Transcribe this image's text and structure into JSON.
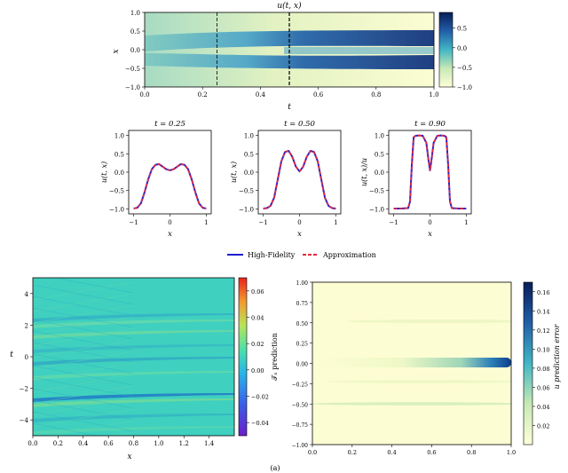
{
  "chart_data": [
    {
      "type": "heatmap",
      "title": "u(t, x)",
      "xlabel": "t",
      "ylabel": "x",
      "xlim": [
        0.0,
        1.0
      ],
      "ylim": [
        -1.0,
        1.0
      ],
      "xticks": [
        "0.0",
        "0.2",
        "0.4",
        "0.6",
        "0.8",
        "1.0"
      ],
      "yticks": [
        "−1.0",
        "−0.5",
        "0.0",
        "0.5",
        "1.0"
      ],
      "vlines_t": [
        0.25,
        0.5
      ],
      "colorbar_ticks": [
        "−1.0",
        "−0.5",
        "0.0",
        "0.5"
      ],
      "colorbar_range": [
        -1.0,
        0.9
      ]
    },
    {
      "type": "line",
      "title": "t = 0.25",
      "xlabel": "x",
      "ylabel": "u(t, x)",
      "xlim": [
        -1,
        1
      ],
      "ylim": [
        -1.0,
        1.0
      ],
      "xticks": [
        "−1",
        "0",
        "1"
      ],
      "yticks": [
        "−1.0",
        "−0.5",
        "0.0",
        "0.5",
        "1.0"
      ],
      "x": [
        -1.0,
        -0.9,
        -0.8,
        -0.7,
        -0.6,
        -0.5,
        -0.4,
        -0.3,
        -0.2,
        -0.1,
        0.0,
        0.1,
        0.2,
        0.3,
        0.4,
        0.5,
        0.6,
        0.7,
        0.8,
        0.9,
        1.0
      ],
      "series": [
        {
          "name": "High-Fidelity",
          "values": [
            -0.99,
            -0.97,
            -0.85,
            -0.55,
            -0.2,
            0.08,
            0.2,
            0.22,
            0.15,
            0.08,
            0.05,
            0.08,
            0.15,
            0.22,
            0.2,
            0.08,
            -0.2,
            -0.55,
            -0.85,
            -0.97,
            -0.99
          ]
        },
        {
          "name": "Approximation",
          "values": [
            -0.99,
            -0.97,
            -0.85,
            -0.55,
            -0.2,
            0.08,
            0.2,
            0.22,
            0.15,
            0.08,
            0.05,
            0.08,
            0.15,
            0.22,
            0.2,
            0.08,
            -0.2,
            -0.55,
            -0.85,
            -0.97,
            -0.99
          ]
        }
      ]
    },
    {
      "type": "line",
      "title": "t = 0.50",
      "xlabel": "x",
      "ylabel": "u(t, x)",
      "xlim": [
        -1,
        1
      ],
      "ylim": [
        -1.0,
        1.0
      ],
      "xticks": [
        "−1",
        "0",
        "1"
      ],
      "yticks": [
        "−1.0",
        "−0.5",
        "0.0",
        "0.5",
        "1.0"
      ],
      "x": [
        -1.0,
        -0.9,
        -0.8,
        -0.7,
        -0.6,
        -0.5,
        -0.4,
        -0.3,
        -0.2,
        -0.1,
        0.0,
        0.1,
        0.2,
        0.3,
        0.4,
        0.5,
        0.6,
        0.7,
        0.8,
        0.9,
        1.0
      ],
      "series": [
        {
          "name": "High-Fidelity",
          "values": [
            -0.99,
            -0.98,
            -0.92,
            -0.7,
            -0.2,
            0.3,
            0.55,
            0.58,
            0.42,
            0.15,
            0.02,
            0.15,
            0.42,
            0.58,
            0.55,
            0.3,
            -0.2,
            -0.7,
            -0.92,
            -0.98,
            -0.99
          ]
        },
        {
          "name": "Approximation",
          "values": [
            -0.99,
            -0.98,
            -0.92,
            -0.7,
            -0.2,
            0.3,
            0.55,
            0.58,
            0.42,
            0.15,
            0.02,
            0.15,
            0.42,
            0.58,
            0.55,
            0.3,
            -0.2,
            -0.7,
            -0.92,
            -0.98,
            -0.99
          ]
        }
      ]
    },
    {
      "type": "line",
      "title": "t = 0.90",
      "xlabel": "x",
      "ylabel": "u(t, x)/u",
      "xlim": [
        -1,
        1
      ],
      "ylim": [
        -1.0,
        1.0
      ],
      "xticks": [
        "−1",
        "0",
        "1"
      ],
      "yticks": [
        "−1.0",
        "−0.5",
        "0.0",
        "0.5",
        "1.0"
      ],
      "x": [
        -1.0,
        -0.8,
        -0.6,
        -0.55,
        -0.5,
        -0.45,
        -0.4,
        -0.3,
        -0.2,
        -0.1,
        -0.05,
        0.0,
        0.05,
        0.1,
        0.2,
        0.3,
        0.4,
        0.45,
        0.5,
        0.55,
        0.6,
        0.8,
        1.0
      ],
      "series": [
        {
          "name": "High-Fidelity",
          "values": [
            -0.99,
            -0.99,
            -0.98,
            -0.8,
            0.2,
            0.95,
            0.99,
            1.0,
            0.99,
            0.8,
            0.4,
            0.05,
            0.4,
            0.8,
            0.99,
            1.0,
            0.99,
            0.95,
            0.2,
            -0.8,
            -0.98,
            -0.99,
            -0.99
          ]
        },
        {
          "name": "Approximation",
          "values": [
            -0.99,
            -0.99,
            -0.98,
            -0.8,
            0.2,
            0.95,
            0.99,
            1.0,
            0.99,
            0.8,
            0.4,
            0.05,
            0.4,
            0.8,
            0.99,
            1.0,
            0.99,
            0.95,
            0.2,
            -0.8,
            -0.98,
            -0.99,
            -0.99
          ]
        }
      ]
    },
    {
      "type": "heatmap",
      "title": "",
      "xlabel": "x",
      "ylabel": "t",
      "xlim": [
        0.0,
        1.6
      ],
      "ylim": [
        -5,
        5
      ],
      "xticks": [
        "0.0",
        "0.2",
        "0.4",
        "0.6",
        "0.8",
        "1.0",
        "1.2",
        "1.4"
      ],
      "yticks": [
        "−4",
        "−2",
        "0",
        "2",
        "4"
      ],
      "colorbar_label": "𝒯ₙ prediction",
      "colorbar_ticks": [
        "0.06",
        "0.04",
        "0.02",
        "0.00",
        "−0.02",
        "−0.04"
      ],
      "colorbar_range": [
        -0.05,
        0.07
      ]
    },
    {
      "type": "heatmap",
      "title": "",
      "xlabel": "",
      "ylabel": "",
      "xlim": [
        0.0,
        1.0
      ],
      "ylim": [
        -1.0,
        1.0
      ],
      "xticks": [
        "0.0",
        "0.2",
        "0.4",
        "0.6",
        "0.8",
        "1.0"
      ],
      "yticks": [
        "1.00",
        "0.75",
        "0.50",
        "0.25",
        "0.00",
        "−0.25",
        "−0.50",
        "−0.75",
        "−1.00"
      ],
      "colorbar_label": "u prediction error",
      "colorbar_ticks": [
        "0.16",
        "0.14",
        "0.12",
        "0.10",
        "0.08",
        "0.06",
        "0.04",
        "0.02"
      ],
      "colorbar_range": [
        0.0,
        0.17
      ]
    }
  ],
  "legend": {
    "placement": "bottom-center",
    "entries": [
      {
        "label": "High-Fidelity",
        "color": "#1f1fd0",
        "style": "solid"
      },
      {
        "label": "Approximation",
        "color": "#e8283c",
        "style": "dashed"
      }
    ]
  },
  "caption": "(a)"
}
